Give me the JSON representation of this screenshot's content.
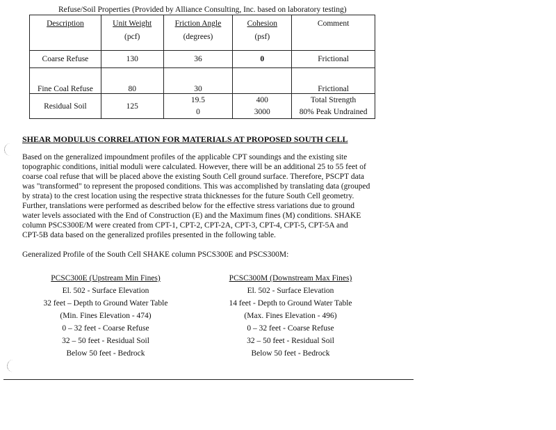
{
  "table": {
    "caption": "Refuse/Soil Properties (Provided by Alliance Consulting, Inc. based on laboratory testing)",
    "headers": [
      {
        "title": "Description",
        "unit": ""
      },
      {
        "title": "Unit Weight",
        "unit": "(pcf)"
      },
      {
        "title": "Friction Angle",
        "unit": "(degrees)"
      },
      {
        "title": "Cohesion",
        "unit": "(psf)"
      },
      {
        "title": "Comment",
        "unit": ""
      }
    ],
    "rows": [
      {
        "description": "Coarse Refuse",
        "unit_weight": "130",
        "friction": "36",
        "cohesion": "0",
        "comment": "Frictional"
      },
      {
        "description": "Fine Coal Refuse",
        "unit_weight": "80",
        "friction": "30",
        "cohesion": "",
        "comment": "Frictional"
      },
      {
        "description": "Residual Soil",
        "unit_weight": "125",
        "friction": "19.5",
        "friction2": "0",
        "cohesion": "400",
        "cohesion2": "3000",
        "comment": "Total Strength",
        "comment2": "80% Peak Undrained"
      }
    ]
  },
  "section": {
    "heading": "SHEAR MODULUS CORRELATION FOR MATERIALS AT PROPOSED SOUTH CELL",
    "paragraph_lines": [
      "Based on the generalized impoundment profiles of the applicable CPT soundings and the existing site",
      "topographic conditions, initial moduli were calculated.  However, there will be an additional 25 to 55 feet of",
      "coarse coal refuse that will be placed above the existing South Cell ground surface.  Therefore, PSCPT data",
      "was \"transformed\" to represent the proposed conditions.  This was accomplished by translating data (grouped",
      "by strata) to the crest location using the respective strata thicknesses for the future South Cell geometry.",
      "Further, translations were performed as described below for the effective stress variations due to ground",
      "water levels associated with the End of Construction (E) and the Maximum fines (M) conditions.  SHAKE",
      "column PSCS300E/M were created from CPT-1, CPT-2, CPT-2A, CPT-3, CPT-4, CPT-5, CPT-5A and",
      "CPT-5B data based on the generalized profiles presented in the following table."
    ],
    "profile_intro": "Generalized Profile of the South Cell SHAKE column PSCS300E and PSCS300M:"
  },
  "profiles": [
    {
      "title": "PCSC300E (Upstream Min Fines)",
      "lines": [
        "El. 502 - Surface Elevation",
        "32 feet – Depth to Ground Water Table",
        "(Min. Fines Elevation - 474)",
        "0 – 32 feet - Coarse Refuse",
        "32 – 50 feet  - Residual Soil",
        "Below 50 feet - Bedrock"
      ]
    },
    {
      "title": "PCSC300M (Downstream Max Fines)",
      "lines": [
        "El. 502 - Surface Elevation",
        "14 feet - Depth to Ground Water Table",
        "(Max. Fines Elevation - 496)",
        "0 – 32 feet - Coarse Refuse",
        "32 – 50 feet  - Residual Soil",
        "Below 50 feet - Bedrock"
      ]
    }
  ]
}
